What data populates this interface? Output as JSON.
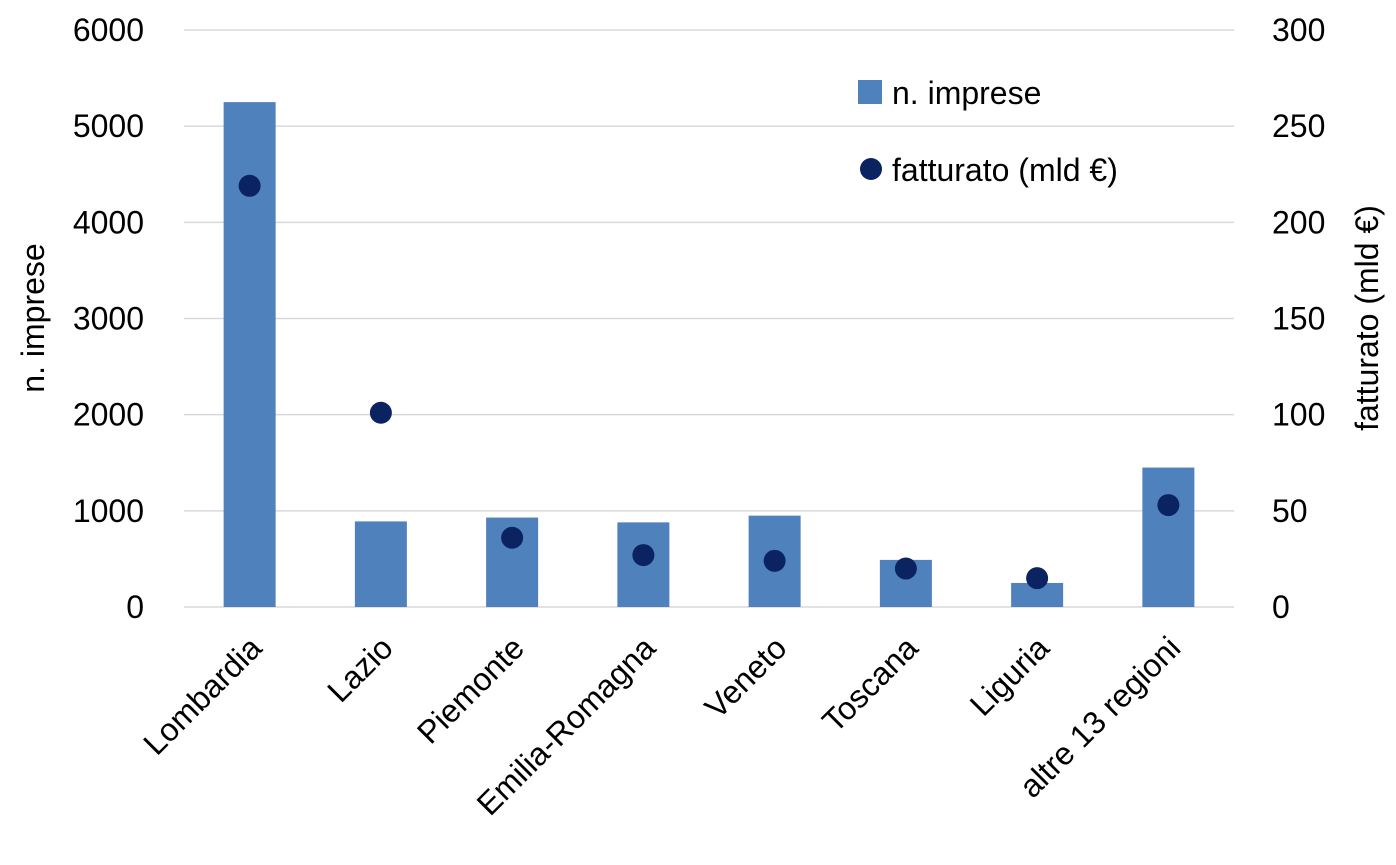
{
  "chart_data": {
    "type": "bar",
    "categories": [
      "Lombardia",
      "Lazio",
      "Piemonte",
      "Emilia-Romagna",
      "Veneto",
      "Toscana",
      "Liguria",
      "altre 13 regioni"
    ],
    "series": [
      {
        "name": "n. imprese",
        "type": "bar",
        "axis": "left",
        "values": [
          5250,
          890,
          930,
          880,
          950,
          490,
          250,
          1450
        ],
        "color": "#4F81BD"
      },
      {
        "name": "fatturato (mld €)",
        "type": "scatter",
        "axis": "right",
        "values": [
          219,
          101,
          36,
          27,
          24,
          20,
          15,
          53
        ],
        "color": "#0B2361"
      }
    ],
    "ylabel": "n. imprese",
    "y2label": "fatturato (mld €)",
    "ylim": [
      0,
      6000
    ],
    "y2lim": [
      0,
      300
    ],
    "yticks": [
      "0",
      "1000",
      "2000",
      "3000",
      "4000",
      "5000",
      "6000"
    ],
    "y2ticks": [
      "0",
      "50",
      "100",
      "150",
      "200",
      "250",
      "300"
    ],
    "grid": true,
    "gridColor": "#D9D9D9",
    "legend": {
      "position": "top-right",
      "entries": [
        "n. imprese",
        "fatturato (mld €)"
      ]
    }
  }
}
